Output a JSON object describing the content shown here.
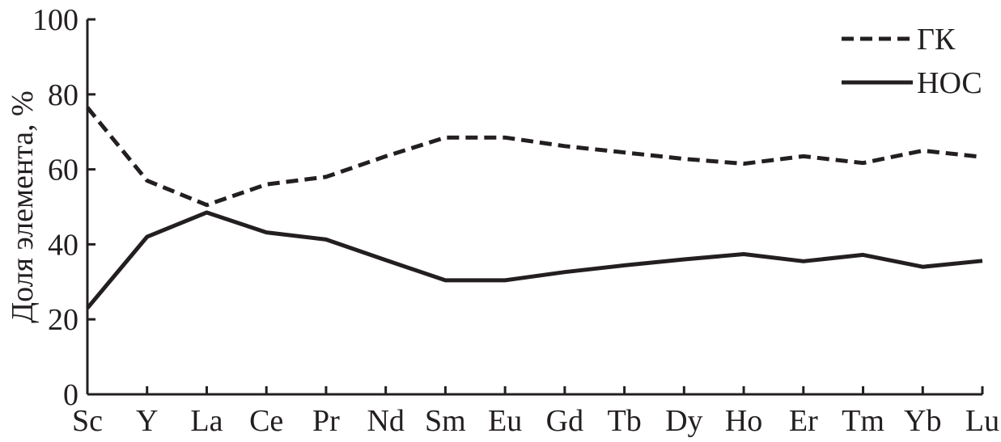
{
  "chart_data": {
    "type": "line",
    "title": "",
    "xlabel": "",
    "ylabel": "Доля элемента, %",
    "categories": [
      "Sc",
      "Y",
      "La",
      "Ce",
      "Pr",
      "Nd",
      "Sm",
      "Eu",
      "Gd",
      "Tb",
      "Dy",
      "Ho",
      "Er",
      "Tm",
      "Yb",
      "Lu"
    ],
    "yticks": [
      "0",
      "20",
      "40",
      "60",
      "80",
      "100"
    ],
    "ylim": [
      0,
      100
    ],
    "grid": false,
    "legend_position": "top-right",
    "series": [
      {
        "name": "ГК",
        "style": "dashed",
        "color": "#231f20",
        "values": [
          76.5,
          57,
          50.5,
          56,
          58,
          63.5,
          68.5,
          68.5,
          66.2,
          64.5,
          62.8,
          61.5,
          63.5,
          61.7,
          65,
          63.3
        ]
      },
      {
        "name": "НОС",
        "style": "solid",
        "color": "#231f20",
        "values": [
          23,
          42,
          48.5,
          43.2,
          41.3,
          35.8,
          30.4,
          30.4,
          32.6,
          34.4,
          36,
          37.4,
          35.5,
          37.2,
          34,
          35.6
        ]
      }
    ]
  }
}
